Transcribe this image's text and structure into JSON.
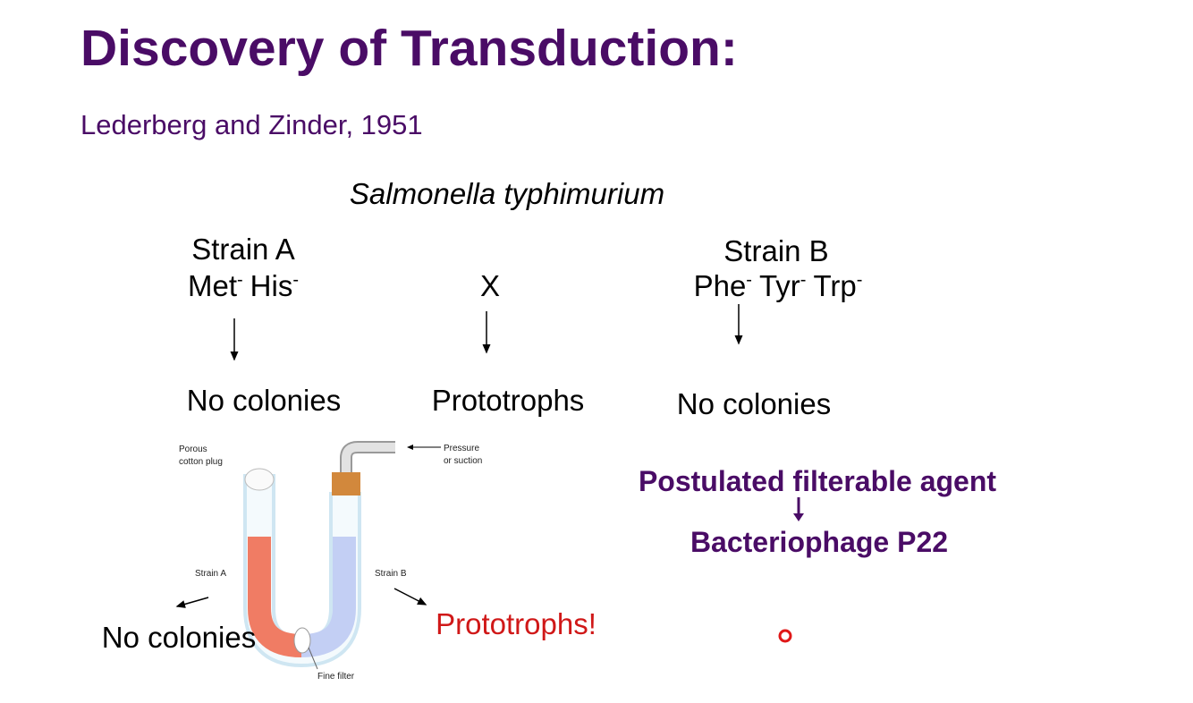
{
  "slide": {
    "title": "Discovery of Transduction:",
    "subtitle": "Lederberg and Zinder, 1951",
    "organism": "Salmonella typhimurium",
    "strain_a": {
      "name": "Strain A",
      "genotype": [
        {
          "gene": "Met",
          "mark": "-"
        },
        {
          "gene": "His",
          "mark": "-"
        }
      ],
      "result": "No colonies"
    },
    "mix": {
      "name": "X",
      "result": "Prototrophs"
    },
    "strain_b": {
      "name": "Strain B",
      "genotype": [
        {
          "gene": "Phe",
          "mark": "-"
        },
        {
          "gene": "Tyr",
          "mark": "-"
        },
        {
          "gene": "Trp",
          "mark": "-"
        }
      ],
      "result": "No colonies"
    },
    "conclusion": {
      "agent": "Postulated filterable agent",
      "identity": "Bacteriophage P22"
    },
    "u_tube": {
      "labels": {
        "plug": [
          "Porous",
          "cotton plug"
        ],
        "pressure": [
          "Pressure",
          "or suction"
        ],
        "left": "Strain A",
        "right": "Strain B",
        "filter": "Fine filter"
      },
      "left_result": "No colonies",
      "right_result": "Prototrophs!"
    }
  }
}
